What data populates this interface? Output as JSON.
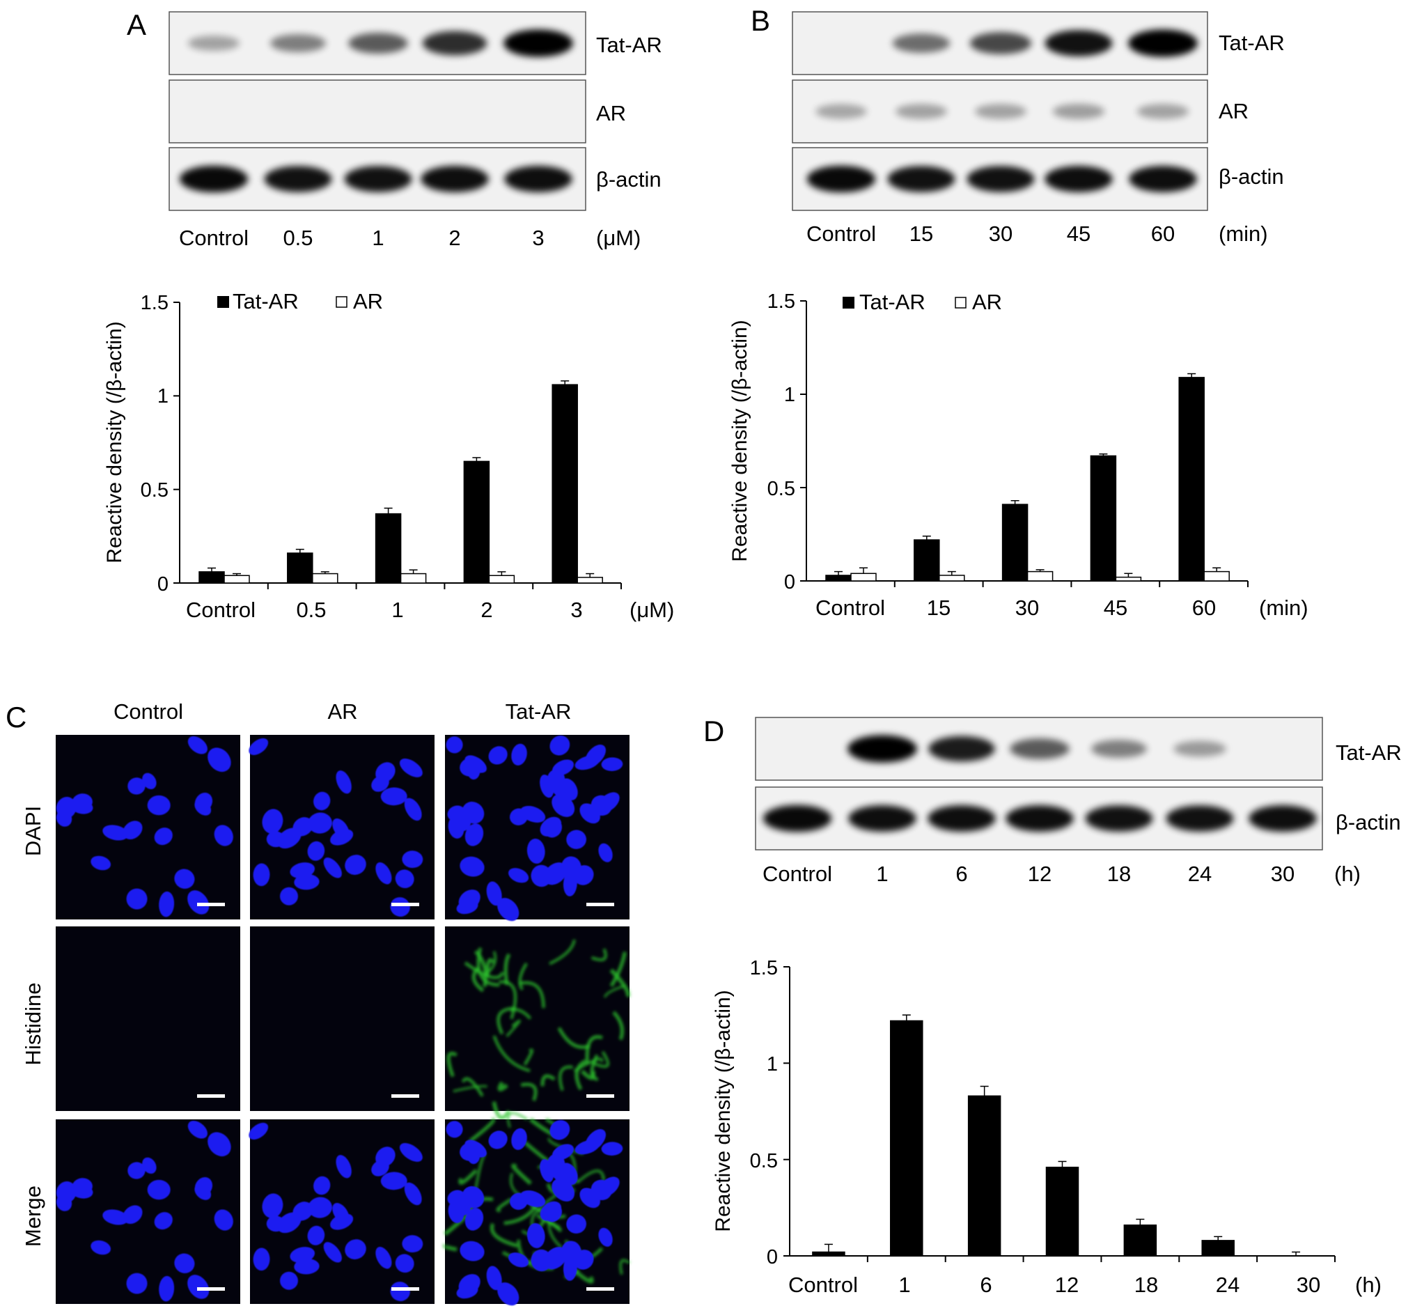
{
  "colors": {
    "tat_ar_bar": "#000000",
    "ar_bar": "#ffffff",
    "blot_background": "#f1f1f1",
    "nucleus": "#1f1ff0",
    "histidine": "#2ec42e",
    "micrograph_background": "#03030d"
  },
  "panel_a": {
    "letter": "A",
    "blots": [
      {
        "label": "Tat-AR",
        "intensities": [
          0.1,
          0.3,
          0.5,
          0.75,
          1.0
        ]
      },
      {
        "label": "AR",
        "intensities": [
          0,
          0,
          0,
          0,
          0
        ]
      },
      {
        "label": "β-actin",
        "intensities": [
          0.95,
          0.9,
          0.9,
          0.92,
          0.92
        ]
      }
    ],
    "lanes": [
      "Control",
      "0.5",
      "1",
      "2",
      "3"
    ],
    "unit": "(μM)"
  },
  "panel_b": {
    "letter": "B",
    "blots": [
      {
        "label": "Tat-AR",
        "intensities": [
          0,
          0.4,
          0.6,
          0.9,
          1.0
        ]
      },
      {
        "label": "AR",
        "intensities": [
          0.08,
          0.1,
          0.1,
          0.12,
          0.1
        ]
      },
      {
        "label": "β-actin",
        "intensities": [
          0.95,
          0.9,
          0.9,
          0.92,
          0.92
        ]
      }
    ],
    "lanes": [
      "Control",
      "15",
      "30",
      "45",
      "60"
    ],
    "unit": "(min)"
  },
  "panel_c": {
    "letter": "C",
    "columns": [
      "Control",
      "AR",
      "Tat-AR"
    ],
    "rows": [
      "DAPI",
      "Histidine",
      "Merge"
    ]
  },
  "panel_d": {
    "letter": "D",
    "blots": [
      {
        "label": "Tat-AR",
        "intensities": [
          0,
          1.0,
          0.85,
          0.5,
          0.3,
          0.15,
          0
        ]
      },
      {
        "label": "β-actin",
        "intensities": [
          0.95,
          0.92,
          0.92,
          0.92,
          0.9,
          0.9,
          0.92
        ]
      }
    ],
    "lanes": [
      "Control",
      "1",
      "6",
      "12",
      "18",
      "24",
      "30"
    ],
    "unit": "(h)"
  },
  "chart_data": [
    {
      "type": "bar",
      "panel": "A",
      "categories": [
        "Control",
        "0.5",
        "1",
        "2",
        "3"
      ],
      "series": [
        {
          "name": "Tat-AR",
          "values": [
            0.06,
            0.16,
            0.37,
            0.65,
            1.06
          ],
          "errors": [
            0.02,
            0.02,
            0.03,
            0.02,
            0.02
          ]
        },
        {
          "name": "AR",
          "values": [
            0.04,
            0.05,
            0.05,
            0.04,
            0.03
          ],
          "errors": [
            0.01,
            0.01,
            0.02,
            0.02,
            0.02
          ]
        }
      ],
      "ylabel": "Reactive density (/β-actin)",
      "xunit": "(μM)",
      "ylim": [
        0,
        1.5
      ],
      "yticks": [
        0,
        0.5,
        1,
        1.5
      ],
      "ytick_labels": [
        "0",
        "0.5",
        "1",
        "1.5"
      ],
      "legend": "top-left"
    },
    {
      "type": "bar",
      "panel": "B",
      "categories": [
        "Control",
        "15",
        "30",
        "45",
        "60"
      ],
      "series": [
        {
          "name": "Tat-AR",
          "values": [
            0.03,
            0.22,
            0.41,
            0.67,
            1.09
          ],
          "errors": [
            0.02,
            0.02,
            0.02,
            0.01,
            0.02
          ]
        },
        {
          "name": "AR",
          "values": [
            0.04,
            0.03,
            0.05,
            0.02,
            0.05
          ],
          "errors": [
            0.03,
            0.02,
            0.01,
            0.02,
            0.02
          ]
        }
      ],
      "ylabel": "Reactive density (/β-actin)",
      "xunit": "(min)",
      "ylim": [
        0,
        1.5
      ],
      "yticks": [
        0,
        0.5,
        1,
        1.5
      ],
      "ytick_labels": [
        "0",
        "0.5",
        "1",
        "1.5"
      ],
      "legend": "top-left"
    },
    {
      "type": "bar",
      "panel": "D",
      "categories": [
        "Control",
        "1",
        "6",
        "12",
        "18",
        "24",
        "30"
      ],
      "series": [
        {
          "name": "Tat-AR",
          "values": [
            0.02,
            1.22,
            0.83,
            0.46,
            0.16,
            0.08,
            0.0
          ],
          "errors": [
            0.04,
            0.03,
            0.05,
            0.03,
            0.03,
            0.02,
            0.02
          ]
        }
      ],
      "ylabel": "Reactive density (/β-actin)",
      "xunit": "(h)",
      "ylim": [
        0,
        1.5
      ],
      "yticks": [
        0,
        0.5,
        1,
        1.5
      ],
      "ytick_labels": [
        "0",
        "0.5",
        "1",
        "1.5"
      ]
    }
  ]
}
